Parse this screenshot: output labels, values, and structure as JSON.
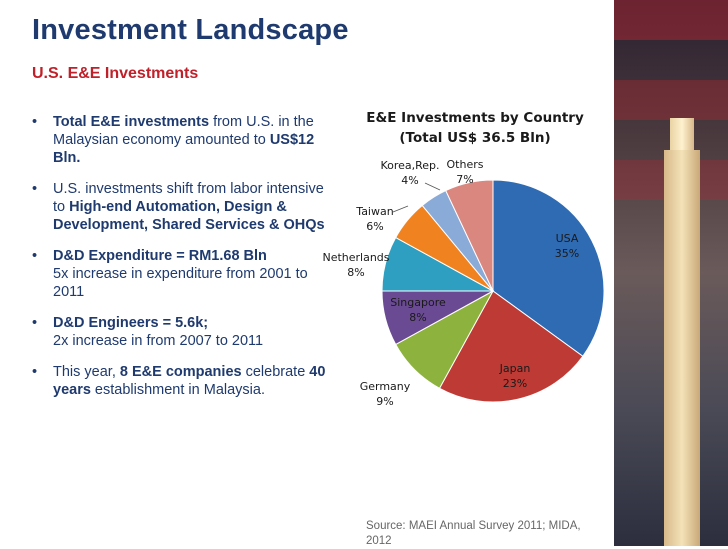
{
  "slide": {
    "title": "Investment Landscape",
    "subtitle": "U.S. E&E Investments",
    "bullets": [
      {
        "parts": [
          {
            "t": "Total E&E investments",
            "b": true
          },
          {
            "t": " from U.S. in the Malaysian economy amounted to ",
            "b": false
          },
          {
            "t": "US$12 Bln.",
            "b": true
          }
        ]
      },
      {
        "parts": [
          {
            "t": "U.S. investments shift from labor intensive to ",
            "b": false
          },
          {
            "t": "High-end Automation, Design & Development, Shared Services & OHQs",
            "b": true
          }
        ]
      },
      {
        "parts": [
          {
            "t": "D&D Expenditure = RM1.68 Bln",
            "b": true
          },
          {
            "t": "\n5x increase in expenditure from 2001 to 2011",
            "b": false
          }
        ]
      },
      {
        "parts": [
          {
            "t": "D&D Engineers = 5.6k;",
            "b": true
          },
          {
            "t": "\n2x increase in from 2007 to 2011",
            "b": false
          }
        ]
      },
      {
        "parts": [
          {
            "t": "This year, ",
            "b": false
          },
          {
            "t": "8 E&E companies",
            "b": true
          },
          {
            "t": " celebrate ",
            "b": false
          },
          {
            "t": "40 years",
            "b": true
          },
          {
            "t": " establishment in Malaysia.",
            "b": false
          }
        ]
      }
    ],
    "source": "Source: MAEI Annual Survey 2011; MIDA, 2012"
  },
  "colors": {
    "title": "#1f3a6e",
    "subtitle": "#c0202a",
    "body": "#1f3a6e"
  },
  "chart_data": {
    "type": "pie",
    "title_line1": "E&E Investments by Country",
    "title_line2": "(Total US$ 36.5 Bln)",
    "slices": [
      {
        "name": "USA",
        "value": 35,
        "label": "35%",
        "color": "#2e6bb3"
      },
      {
        "name": "Japan",
        "value": 23,
        "label": "23%",
        "color": "#be3b35"
      },
      {
        "name": "Germany",
        "value": 9,
        "label": "9%",
        "color": "#8db23e"
      },
      {
        "name": "Singapore",
        "value": 8,
        "label": "8%",
        "color": "#6a4b93"
      },
      {
        "name": "Netherlands",
        "value": 8,
        "label": "8%",
        "color": "#2e9fc0"
      },
      {
        "name": "Taiwan",
        "value": 6,
        "label": "6%",
        "color": "#f0821f"
      },
      {
        "name": "Korea,Rep.",
        "value": 4,
        "label": "4%",
        "color": "#8aaad8"
      },
      {
        "name": "Others",
        "value": 7,
        "label": "7%",
        "color": "#d9877f"
      }
    ]
  }
}
